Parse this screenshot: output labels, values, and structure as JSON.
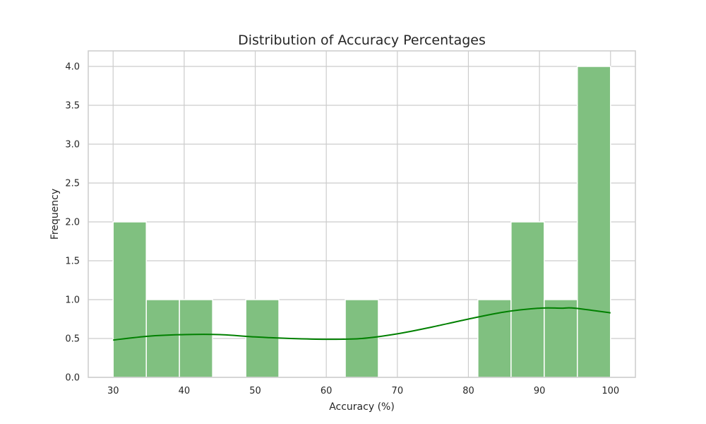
{
  "chart_data": {
    "type": "bar",
    "subtype": "histogram-with-kde",
    "title": "Distribution of Accuracy Percentages",
    "xlabel": "Accuracy (%)",
    "ylabel": "Frequency",
    "xlim": [
      26.5,
      103.5
    ],
    "ylim": [
      0,
      4.2
    ],
    "x_ticks": [
      "30",
      "40",
      "50",
      "60",
      "70",
      "80",
      "90",
      "100"
    ],
    "y_ticks": [
      "0.0",
      "0.5",
      "1.0",
      "1.5",
      "2.0",
      "2.5",
      "3.0",
      "3.5",
      "4.0"
    ],
    "grid": true,
    "bin_range": [
      30,
      100
    ],
    "bin_count": 15,
    "bins": [
      {
        "start": 30.0,
        "end": 34.67,
        "count": 2
      },
      {
        "start": 34.67,
        "end": 39.33,
        "count": 1
      },
      {
        "start": 39.33,
        "end": 44.0,
        "count": 1
      },
      {
        "start": 44.0,
        "end": 48.67,
        "count": 0
      },
      {
        "start": 48.67,
        "end": 53.33,
        "count": 1
      },
      {
        "start": 53.33,
        "end": 58.0,
        "count": 0
      },
      {
        "start": 58.0,
        "end": 62.67,
        "count": 0
      },
      {
        "start": 62.67,
        "end": 67.33,
        "count": 1
      },
      {
        "start": 67.33,
        "end": 72.0,
        "count": 0
      },
      {
        "start": 72.0,
        "end": 76.67,
        "count": 0
      },
      {
        "start": 76.67,
        "end": 81.33,
        "count": 0
      },
      {
        "start": 81.33,
        "end": 86.0,
        "count": 1
      },
      {
        "start": 86.0,
        "end": 90.67,
        "count": 2
      },
      {
        "start": 90.67,
        "end": 95.33,
        "count": 1
      },
      {
        "start": 95.33,
        "end": 100.0,
        "count": 4
      }
    ],
    "kde": {
      "x": [
        30,
        35,
        40,
        45,
        50,
        55,
        60,
        65,
        70,
        75,
        80,
        85,
        90,
        93,
        95,
        100
      ],
      "y": [
        0.48,
        0.53,
        0.55,
        0.55,
        0.52,
        0.5,
        0.49,
        0.5,
        0.56,
        0.65,
        0.75,
        0.84,
        0.89,
        0.89,
        0.89,
        0.83
      ]
    },
    "colors": {
      "bar_fill": "#80c080",
      "bar_edge": "#ffffff",
      "kde_line": "#008000",
      "grid": "#cccccc",
      "axes_frame": "#cccccc",
      "text": "#262626"
    }
  }
}
